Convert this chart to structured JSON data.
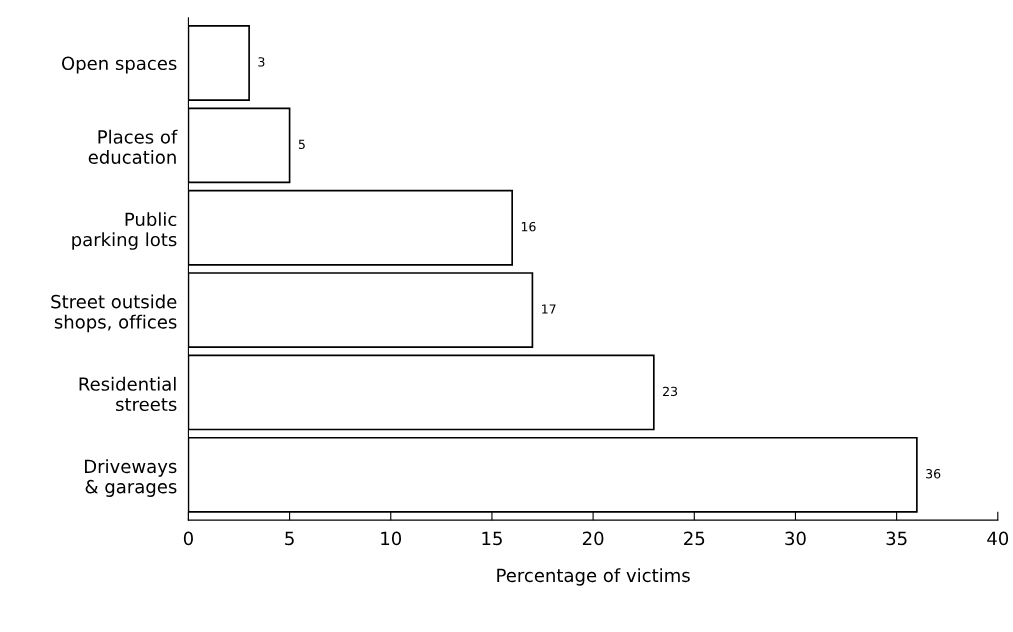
{
  "chart_data": {
    "type": "bar",
    "orientation": "horizontal",
    "xlabel": "Percentage of victims",
    "categories": [
      "Open spaces",
      "Places of\neducation",
      "Public\nparking lots",
      "Street outside\nshops, offices",
      "Residential\nstreets",
      "Driveways\n& garages"
    ],
    "values": [
      3,
      5,
      16,
      17,
      23,
      36
    ],
    "color": "#ffffff",
    "xlim": [
      0,
      40
    ],
    "xticks": [
      0,
      5,
      10,
      15,
      20,
      25,
      30,
      35,
      40
    ],
    "grid": false,
    "data_labels": true
  }
}
